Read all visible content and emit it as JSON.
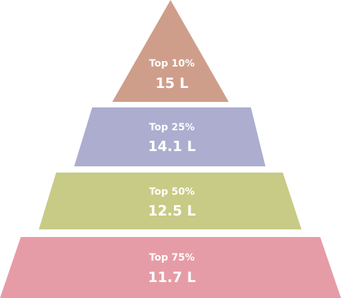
{
  "chart_data": {
    "type": "pyramid",
    "tiers": [
      {
        "label": "Top 10%",
        "value": 15,
        "value_label": "15 L",
        "color": "#cf9e8b"
      },
      {
        "label": "Top 25%",
        "value": 14.1,
        "value_label": "14.1 L",
        "color": "#acadcf"
      },
      {
        "label": "Top 50%",
        "value": 12.5,
        "value_label": "12.5 L",
        "color": "#c8cb85"
      },
      {
        "label": "Top 75%",
        "value": 11.7,
        "value_label": "11.7 L",
        "color": "#e69ca6"
      }
    ]
  }
}
